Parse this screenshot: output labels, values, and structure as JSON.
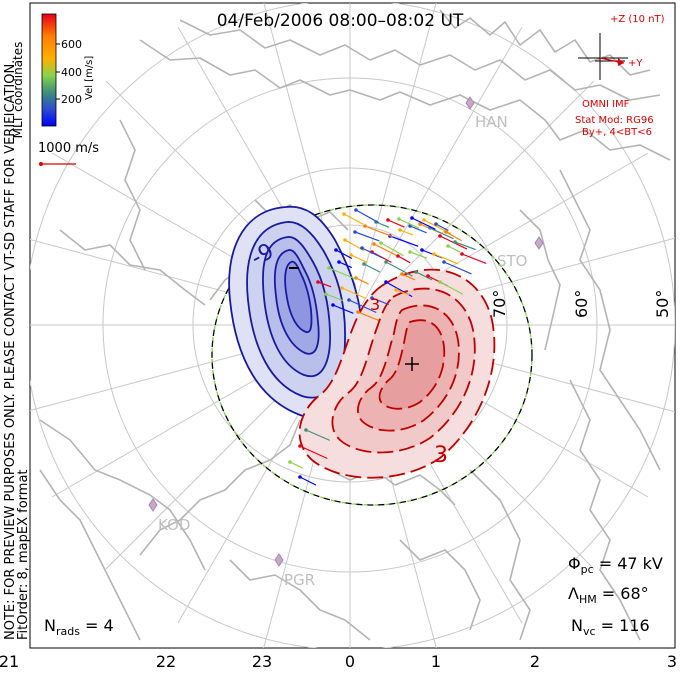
{
  "title": "04/Feb/2006 08:00–08:02 UT",
  "side_note": "NOTE: FOR PREVIEW PURPOSES ONLY. PLEASE CONTACT VT-SD STAFF FOR VERIFICATION.",
  "fit_note": "FitOrder: 8, mapEX format",
  "coords_label": "MLT coordinates",
  "colorbar": {
    "axis_label": "Vel [m/s]",
    "ticks": [
      "600",
      "400",
      "200"
    ],
    "colors": [
      "#e8001c",
      "#ff7f00",
      "#ffb000",
      "#88d24c",
      "#3d8f7a",
      "#2c4bd0",
      "#0000ff"
    ]
  },
  "scale_vector_label": "1000 m/s",
  "imf": {
    "z_label": "+Z (10 nT)",
    "y_label": "+Y",
    "omni_label": "OMNI IMF",
    "stat_mod": "Stat Mod: RG96",
    "by_cond": "By+, 4<BT<6",
    "color": "#e00000"
  },
  "stations": [
    "HAN",
    "STO",
    "KOD",
    "PGR"
  ],
  "lat_labels": [
    "70°",
    "60°",
    "50°"
  ],
  "mlt_labels": [
    "21",
    "22",
    "23",
    "0",
    "1",
    "2",
    "3"
  ],
  "contours": {
    "negative_label": "-9",
    "positive_label": "3",
    "center_label": "3",
    "neg_color": "#1a1aa0",
    "pos_color": "#c00000"
  },
  "stats": {
    "phi_sym": "Φ",
    "phi_sub": "pc",
    "phi_val": " = 47 kV",
    "lam_sym": "Λ",
    "lam_sub": "HM",
    "lam_val": " = 68°",
    "nvc_sym": "N",
    "nvc_sub": "vc",
    "nvc_val": " = 116",
    "nrads_sym": "N",
    "nrads_sub": "rads",
    "nrads_val": " = 4"
  }
}
